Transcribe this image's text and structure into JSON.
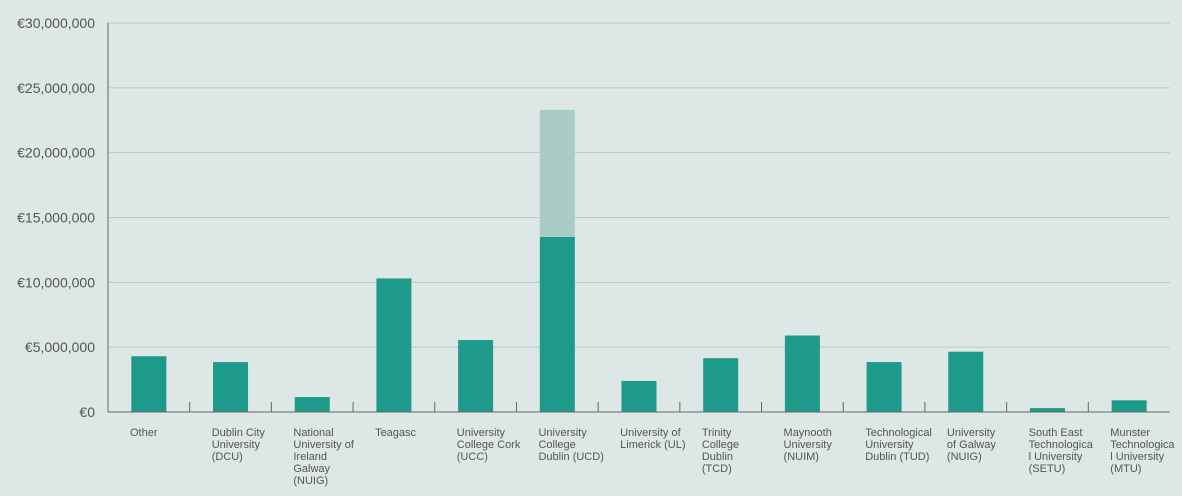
{
  "chart_data": {
    "type": "bar",
    "title": "",
    "xlabel": "",
    "ylabel": "",
    "ylim": [
      0,
      30000000
    ],
    "yticks": [
      0,
      5000000,
      10000000,
      15000000,
      20000000,
      25000000,
      30000000
    ],
    "ytick_labels": [
      "€0",
      "€5,000,000",
      "€10,000,000",
      "€15,000,000",
      "€20,000,000",
      "€25,000,000",
      "€30,000,000"
    ],
    "grid": true,
    "legend": "none",
    "colors": {
      "primary": "#1e9a8a",
      "secondary": "#a9cdc6",
      "grid": "#b9c9c6",
      "axis": "#666666",
      "background": "#dde7e5"
    },
    "categories": [
      [
        "Other"
      ],
      [
        "Dublin City",
        "University",
        "(DCU)"
      ],
      [
        "National",
        "University of",
        "Ireland",
        "Galway",
        "(NUIG)"
      ],
      [
        "Teagasc"
      ],
      [
        "University",
        "College Cork",
        "(UCC)"
      ],
      [
        "University",
        "College",
        "Dublin (UCD)"
      ],
      [
        "University of",
        "Limerick (UL)"
      ],
      [
        "Trinity",
        "College",
        "Dublin",
        "(TCD)"
      ],
      [
        "Maynooth",
        "University",
        "(NUIM)"
      ],
      [
        "Technological",
        "University",
        "Dublin (TUD)"
      ],
      [
        "University",
        "of Galway",
        "(NUIG)"
      ],
      [
        "South East",
        "Technologica",
        "l University",
        "(SETU)"
      ],
      [
        "Munster",
        "Technologica",
        "l University",
        "(MTU)"
      ]
    ],
    "series": [
      {
        "values": [
          4300000,
          3850000,
          1150000,
          10300000,
          5550000,
          13500000,
          2400000,
          4150000,
          5900000,
          3850000,
          4650000,
          300000,
          900000
        ]
      },
      {
        "values": [
          0,
          0,
          0,
          0,
          0,
          9800000,
          0,
          0,
          0,
          0,
          0,
          0,
          0
        ]
      }
    ]
  }
}
